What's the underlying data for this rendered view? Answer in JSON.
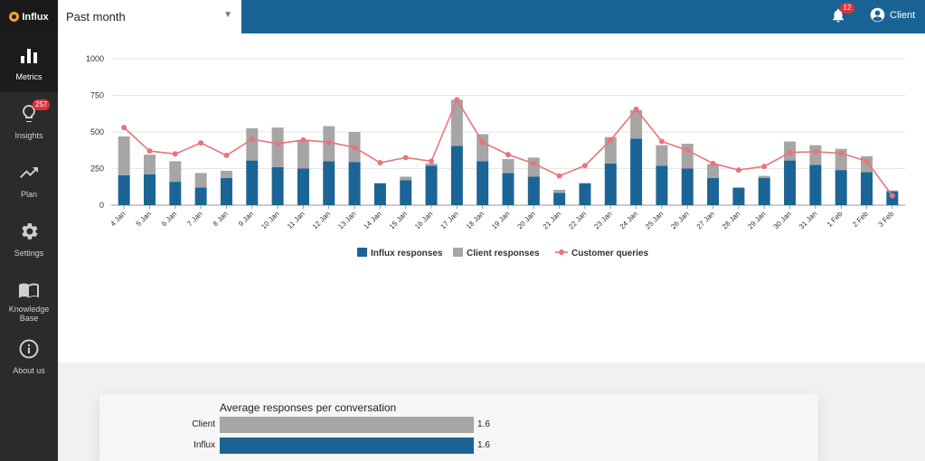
{
  "app": {
    "logo_text": "Influx"
  },
  "header": {
    "range_label": "Past month",
    "notifications_count": "12",
    "user_label": "Client"
  },
  "sidebar": {
    "items": [
      {
        "label": "Metrics",
        "icon": "bar-chart-icon",
        "active": true
      },
      {
        "label": "Insights",
        "icon": "lightbulb-icon",
        "badge": "257"
      },
      {
        "label": "Plan",
        "icon": "trending-up-icon"
      },
      {
        "label": "Settings",
        "icon": "gear-icon"
      },
      {
        "label": "Knowledge Base",
        "icon": "book-icon"
      },
      {
        "label": "About us",
        "icon": "info-icon"
      }
    ]
  },
  "colors": {
    "influx": "#1b6596",
    "client": "#a6a6a6",
    "queries": "#e8747c",
    "topbar": "#196394"
  },
  "chart_data": {
    "type": "bar",
    "stacked": true,
    "ylim": [
      0,
      1000
    ],
    "yticks": [
      0,
      250,
      500,
      750,
      1000
    ],
    "categories": [
      "4 Jan",
      "5 Jan",
      "6 Jan",
      "7 Jan",
      "8 Jan",
      "9 Jan",
      "10 Jan",
      "11 Jan",
      "12 Jan",
      "13 Jan",
      "14 Jan",
      "15 Jan",
      "16 Jan",
      "17 Jan",
      "18 Jan",
      "19 Jan",
      "20 Jan",
      "21 Jan",
      "22 Jan",
      "23 Jan",
      "24 Jan",
      "25 Jan",
      "26 Jan",
      "27 Jan",
      "28 Jan",
      "29 Jan",
      "30 Jan",
      "31 Jan",
      "1 Feb",
      "2 Feb",
      "3 Feb"
    ],
    "series": [
      {
        "name": "Influx responses",
        "type": "bar",
        "values": [
          205,
          210,
          160,
          120,
          185,
          305,
          260,
          250,
          300,
          295,
          150,
          170,
          270,
          405,
          300,
          220,
          195,
          85,
          150,
          285,
          455,
          270,
          250,
          185,
          120,
          185,
          305,
          275,
          240,
          225,
          95
        ]
      },
      {
        "name": "Client responses",
        "type": "bar",
        "values": [
          265,
          135,
          140,
          100,
          50,
          220,
          270,
          195,
          240,
          205,
          0,
          25,
          15,
          315,
          185,
          95,
          130,
          20,
          0,
          180,
          195,
          140,
          170,
          95,
          0,
          15,
          130,
          135,
          145,
          110,
          5
        ]
      },
      {
        "name": "Customer queries",
        "type": "line",
        "values": [
          530,
          370,
          350,
          425,
          340,
          450,
          420,
          445,
          430,
          395,
          290,
          325,
          300,
          720,
          430,
          345,
          285,
          200,
          270,
          445,
          655,
          435,
          375,
          285,
          240,
          265,
          360,
          365,
          355,
          300,
          65
        ]
      }
    ],
    "legend": [
      "Influx responses",
      "Client responses",
      "Customer queries"
    ],
    "legend_position": "bottom"
  },
  "summary_chart": {
    "title": "Average responses per conversation",
    "rows": [
      {
        "label": "Client",
        "value": 1.6,
        "value_label": "1.6",
        "color": "#a6a6a6"
      },
      {
        "label": "Influx",
        "value": 1.6,
        "value_label": "1.6",
        "color": "#1b6596"
      }
    ],
    "max": 1.6
  }
}
